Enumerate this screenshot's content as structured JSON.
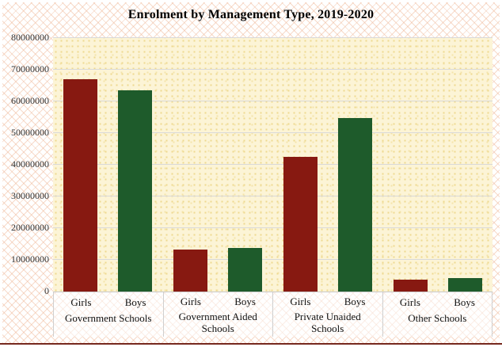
{
  "title": "Enrolment by Management Type, 2019-2020",
  "colors": {
    "girls_bar": "#871911",
    "boys_bar": "#1e5b2b",
    "gridline": "#d9d9d9",
    "plot_background": "#fcf4d6",
    "hatch_pattern": "#f0bc9e",
    "axis_text": "#333333",
    "label_text": "#111111",
    "bottom_rule": "#76281e"
  },
  "chart_data": {
    "type": "bar",
    "title": "Enrolment by Management Type, 2019-2020",
    "categories": [
      "Government Schools",
      "Government Aided Schools",
      "Private Unaided Schools",
      "Other Schools"
    ],
    "series": [
      {
        "name": "Girls",
        "values": [
          67000000,
          13250000,
          42500000,
          3700000
        ]
      },
      {
        "name": "Boys",
        "values": [
          63500000,
          13800000,
          54800000,
          4300000
        ]
      }
    ],
    "xlabel": "",
    "ylabel": "",
    "ylim": [
      0,
      80000000
    ],
    "y_ticks": [
      0,
      10000000,
      20000000,
      30000000,
      40000000,
      50000000,
      60000000,
      70000000,
      80000000
    ],
    "y_tick_labels": [
      "0",
      "10000000",
      "20000000",
      "30000000",
      "40000000",
      "50000000",
      "60000000",
      "70000000",
      "80000000"
    ],
    "grid": true,
    "legend_position": "none",
    "bar_sub_labels_per_group": [
      "Girls",
      "Boys"
    ]
  }
}
